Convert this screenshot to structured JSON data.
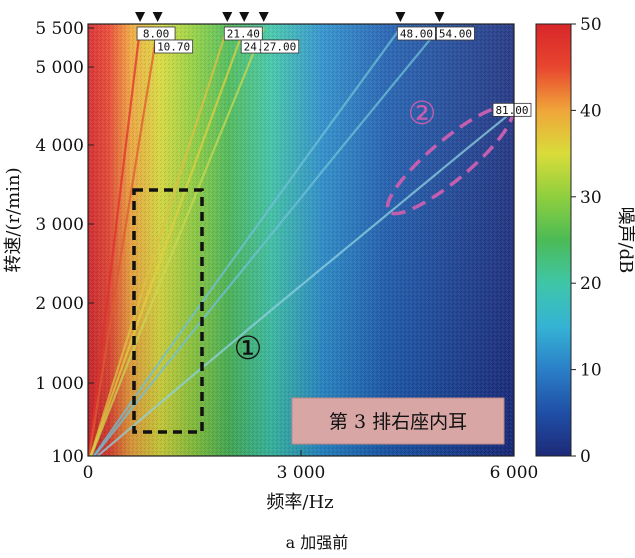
{
  "chart_data": {
    "type": "heatmap",
    "xlabel": "频率/Hz",
    "ylabel": "转速/(r/min)",
    "colorbar_label": "噪声/dB",
    "caption": "a   加强前",
    "x_range": [
      0,
      6000
    ],
    "y_range": [
      100,
      5500
    ],
    "c_range": [
      0,
      50
    ],
    "x_ticks": [
      {
        "value": 0,
        "label": "0"
      },
      {
        "value": 3000,
        "label": "3 000"
      },
      {
        "value": 6000,
        "label": "6 000"
      }
    ],
    "y_ticks": [
      {
        "value": 100,
        "label": "100"
      },
      {
        "value": 1000,
        "label": "1 000"
      },
      {
        "value": 2000,
        "label": "2 000"
      },
      {
        "value": 3000,
        "label": "3 000"
      },
      {
        "value": 4000,
        "label": "4 000"
      },
      {
        "value": 5000,
        "label": "5 000"
      },
      {
        "value": 5500,
        "label": "5 500"
      }
    ],
    "c_ticks": [
      0,
      10,
      20,
      30,
      40,
      50
    ],
    "colormap": [
      "#1d2a78",
      "#1f4fa6",
      "#2b7fc8",
      "#35b3d4",
      "#3fc6a8",
      "#4cbb56",
      "#8fcf3e",
      "#d9dc3a",
      "#f0a53a",
      "#e8462f",
      "#d8262a"
    ],
    "orders": [
      "8.00",
      "10.70",
      "21.40",
      "24.00",
      "27.00",
      "48.00",
      "54.00",
      "81.00"
    ],
    "annotation_text": "第 3 排右座内耳",
    "regions": [
      "①",
      "②"
    ]
  }
}
